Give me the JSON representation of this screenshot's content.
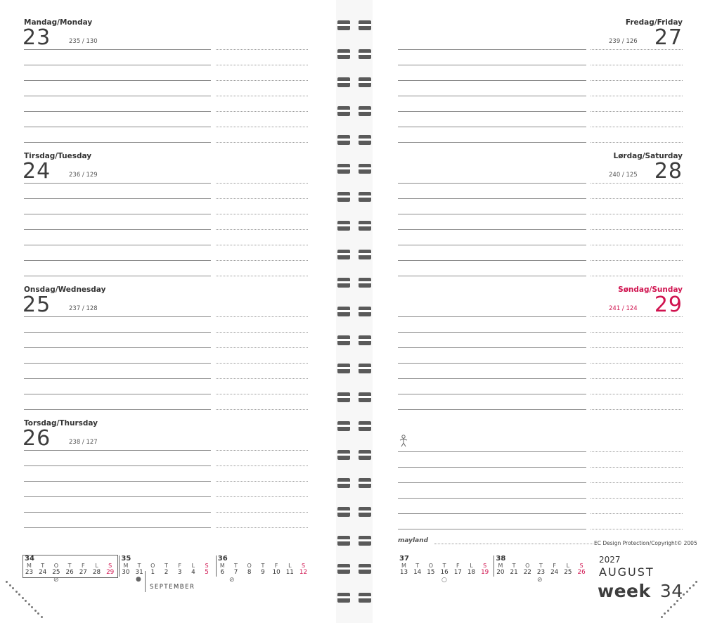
{
  "days_left": [
    {
      "name": "Mandag/Monday",
      "num": "23",
      "count": "235 / 130"
    },
    {
      "name": "Tirsdag/Tuesday",
      "num": "24",
      "count": "236 / 129"
    },
    {
      "name": "Onsdag/Wednesday",
      "num": "25",
      "count": "237 / 128"
    },
    {
      "name": "Torsdag/Thursday",
      "num": "26",
      "count": "238 / 127"
    }
  ],
  "days_right": [
    {
      "name": "Fredag/Friday",
      "num": "27",
      "count": "239 / 126"
    },
    {
      "name": "Lørdag/Saturday",
      "num": "28",
      "count": "240 / 125"
    },
    {
      "name": "Søndag/Sunday",
      "num": "29",
      "count": "241 / 124",
      "highlight": true
    }
  ],
  "mini_calendars": {
    "weekday_headers": [
      "M",
      "T",
      "O",
      "T",
      "F",
      "L",
      "S"
    ],
    "left": [
      {
        "week": "34",
        "days": [
          "23",
          "24",
          "25",
          "26",
          "27",
          "28",
          "29"
        ]
      },
      {
        "week": "35",
        "days": [
          "30",
          "31",
          "1",
          "2",
          "3",
          "4",
          "5"
        ]
      },
      {
        "week": "36",
        "days": [
          "6",
          "7",
          "8",
          "9",
          "10",
          "11",
          "12"
        ]
      }
    ],
    "right": [
      {
        "week": "37",
        "days": [
          "13",
          "14",
          "15",
          "16",
          "17",
          "18",
          "19"
        ]
      },
      {
        "week": "38",
        "days": [
          "20",
          "21",
          "22",
          "23",
          "24",
          "25",
          "26"
        ]
      }
    ],
    "month_label": "SEPTEMBER"
  },
  "footer": {
    "brand": "mayland",
    "copyright": "EC Design Protection/Copyright© 2005",
    "year": "2027",
    "month": "AUGUST",
    "week_word": "week",
    "week_num": "34"
  },
  "colors": {
    "accent": "#d0134f",
    "text": "#3d3d3d",
    "rings": "#5a5a5a"
  }
}
